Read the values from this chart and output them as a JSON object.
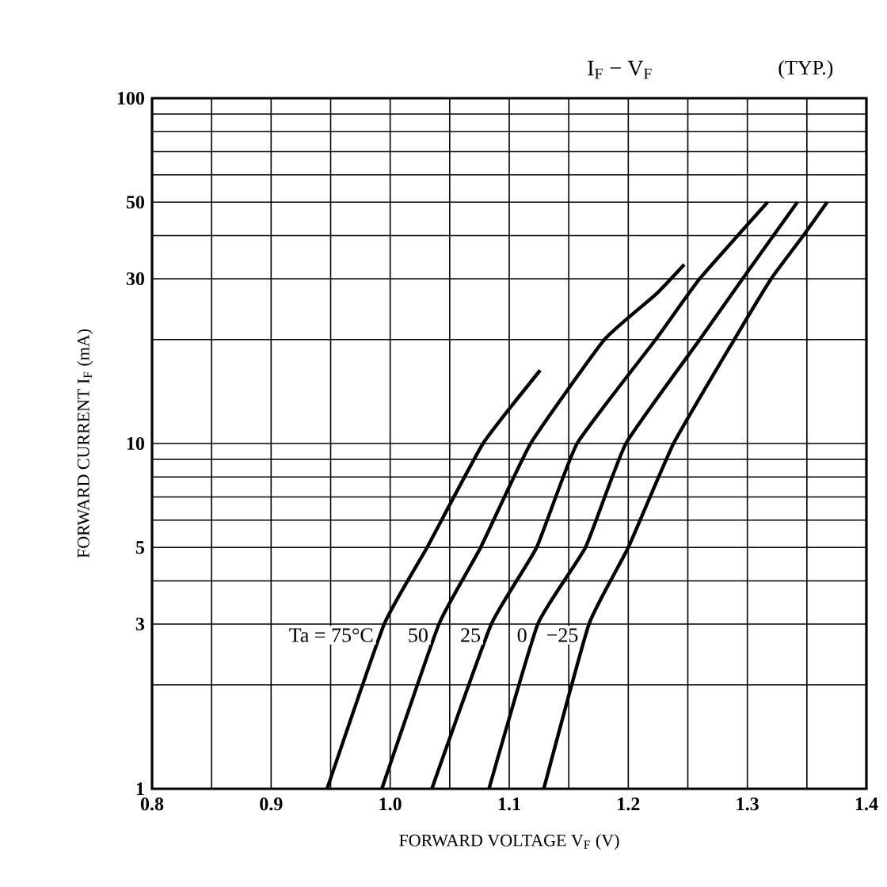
{
  "chart_data": {
    "type": "line",
    "title": "I$_{F}$ − V$_{F}$",
    "subtitle": "(TYP.)",
    "xlabel": "FORWARD VOLTAGE  V$_{F}$  (V)",
    "ylabel": "FORWARD CURRENT  I$_{F}$  (mA)",
    "log": "y",
    "grid": true,
    "xlim": [
      0.8,
      1.4
    ],
    "xticks": [
      0.8,
      {
        "value": 0.85,
        "label": null
      },
      0.9,
      {
        "value": 0.95,
        "label": null
      },
      {
        "value": 1.0,
        "label": "1.0"
      },
      {
        "value": 1.05,
        "label": null
      },
      1.1,
      {
        "value": 1.15,
        "label": null
      },
      1.2,
      {
        "value": 1.25,
        "label": null
      },
      1.3,
      {
        "value": 1.35,
        "label": null
      },
      1.4
    ],
    "ylim": [
      1,
      100
    ],
    "yticks": [
      1,
      {
        "value": 2,
        "label": null
      },
      3,
      {
        "value": 4,
        "label": null
      },
      5,
      {
        "value": 6,
        "label": null
      },
      {
        "value": 7,
        "label": null
      },
      {
        "value": 8,
        "label": null
      },
      {
        "value": 9,
        "label": null
      },
      10,
      {
        "value": 20,
        "label": null
      },
      30,
      {
        "value": 40,
        "label": null
      },
      50,
      {
        "value": 60,
        "label": null
      },
      {
        "value": 70,
        "label": null
      },
      {
        "value": 80,
        "label": null
      },
      {
        "value": 90,
        "label": null
      },
      100
    ],
    "series": [
      {
        "name": "Ta = 75°C",
        "color": "#000000",
        "x": [
          0.947,
          0.995,
          1.031,
          1.078,
          1.126
        ],
        "values": [
          1,
          3,
          5,
          10,
          16.3
        ]
      },
      {
        "name": "50",
        "color": "#000000",
        "x": [
          0.993,
          1.041,
          1.076,
          1.118,
          1.18,
          1.223,
          1.247
        ],
        "values": [
          1,
          3,
          5,
          10,
          20,
          27,
          33
        ]
      },
      {
        "name": "25",
        "color": "#000000",
        "x": [
          1.035,
          1.085,
          1.123,
          1.157,
          1.223,
          1.26,
          1.317
        ],
        "values": [
          1,
          3,
          5,
          10,
          20,
          30,
          50
        ]
      },
      {
        "name": "0",
        "color": "#000000",
        "x": [
          1.083,
          1.124,
          1.164,
          1.198,
          1.26,
          1.296,
          1.342
        ],
        "values": [
          1,
          3,
          5,
          10,
          20,
          30,
          50
        ]
      },
      {
        "name": "−25",
        "color": "#000000",
        "x": [
          1.129,
          1.167,
          1.2,
          1.238,
          1.289,
          1.32,
          1.347,
          1.367
        ],
        "values": [
          1,
          3,
          5,
          10,
          20,
          30,
          40,
          50
        ]
      }
    ]
  }
}
